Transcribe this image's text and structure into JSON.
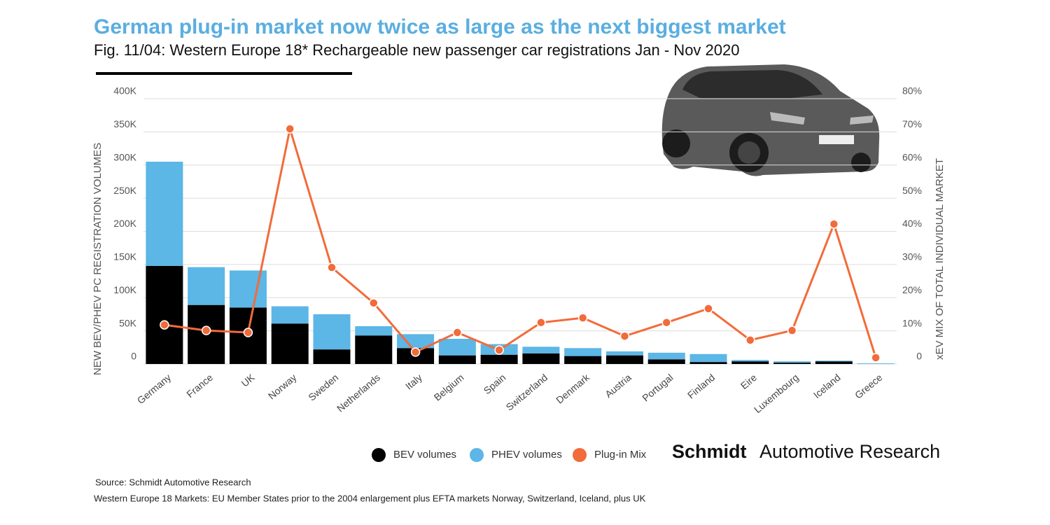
{
  "chart_data": {
    "type": "bar",
    "stacked": true,
    "title": "German plug-in market now twice as large as the next biggest market",
    "subtitle": "Fig. 11/04: Western Europe 18* Rechargeable new passenger car registrations Jan - Nov 2020",
    "ylabel": "NEW BEV/PHEV PC REGISTRATION VOLUMES",
    "y2label": "xEV MIX OF TOTAL INDIVIDUAL MARKET",
    "categories": [
      "Germany",
      "France",
      "UK",
      "Norway",
      "Sweden",
      "Netherlands",
      "Italy",
      "Belgium",
      "Spain",
      "Switzerland",
      "Denmark",
      "Austria",
      "Portugal",
      "Finland",
      "Eire",
      "Luxembourg",
      "Iceland",
      "Greece"
    ],
    "series": [
      {
        "name": "BEV volumes",
        "type": "bar",
        "color": "#000000",
        "values": [
          148000,
          89000,
          85000,
          61000,
          22000,
          43000,
          24000,
          13000,
          14000,
          16000,
          12000,
          13000,
          7000,
          3000,
          4000,
          2000,
          4000,
          0
        ]
      },
      {
        "name": "PHEV volumes",
        "type": "bar",
        "color": "#5cb6e6",
        "values": [
          157000,
          57000,
          56000,
          26000,
          53000,
          14000,
          21000,
          25000,
          16000,
          10000,
          12000,
          6000,
          10000,
          12000,
          2000,
          2000,
          1000,
          1000
        ]
      },
      {
        "name": "Plug-in Mix",
        "type": "line",
        "axis": "y2",
        "color": "#f26b3a",
        "values": [
          11.8,
          10.1,
          9.5,
          70.9,
          29.1,
          18.4,
          3.6,
          9.5,
          4.2,
          12.5,
          13.9,
          8.4,
          12.5,
          16.7,
          7.2,
          10.1,
          42.2,
          1.9
        ]
      }
    ],
    "ylim": [
      0,
      400000
    ],
    "yticks": [
      0,
      {
        "value": 50000,
        "label": "50K"
      },
      {
        "value": 100000,
        "label": "100K"
      },
      {
        "value": 150000,
        "label": "150K"
      },
      {
        "value": 200000,
        "label": "200K"
      },
      {
        "value": 250000,
        "label": "250K"
      },
      {
        "value": 300000,
        "label": "300K"
      },
      {
        "value": 350000,
        "label": "350K"
      },
      {
        "value": 400000,
        "label": "400K"
      }
    ],
    "y2lim": [
      0,
      80
    ],
    "y2ticks": [
      0,
      {
        "value": 10,
        "label": "10%"
      },
      {
        "value": 20,
        "label": "20%"
      },
      {
        "value": 30,
        "label": "30%"
      },
      {
        "value": 40,
        "label": "40%"
      },
      {
        "value": 50,
        "label": "50%"
      },
      {
        "value": 60,
        "label": "60%"
      },
      {
        "value": 70,
        "label": "70%"
      },
      {
        "value": 80,
        "label": "80%"
      }
    ],
    "grid": true,
    "legend": "bottom",
    "brand": {
      "bold": "Schmidt",
      "regular": "Automotive Research"
    },
    "footnotes": [
      "Source: Schmidt Automotive Research",
      "Western Europe 18 Markets: EU Member States prior to the 2004 enlargement plus EFTA markets Norway, Switzerland, Iceland, plus UK"
    ]
  }
}
